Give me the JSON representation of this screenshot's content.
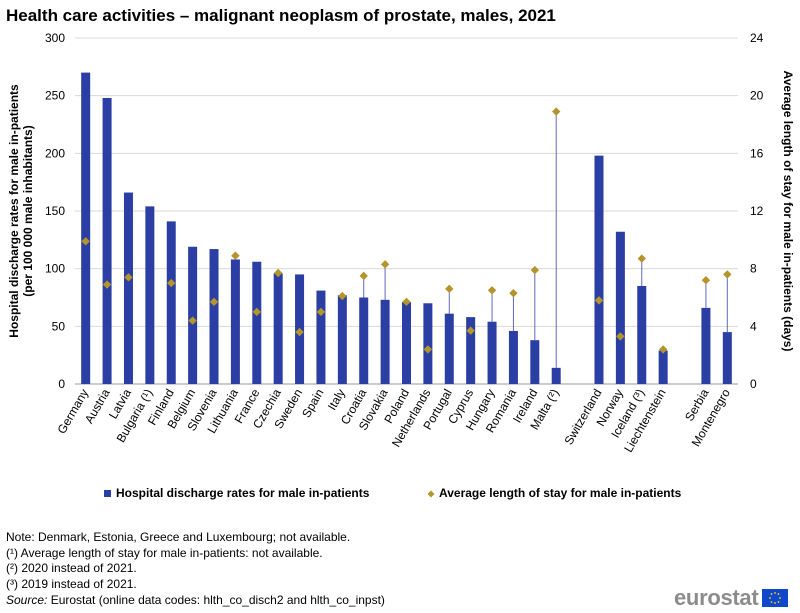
{
  "title": "Health care activities – malignant neoplasm of prostate, males, 2021",
  "chart_data": {
    "type": "bar",
    "categories": [
      "Germany",
      "Austria",
      "Latvia",
      "Bulgaria (¹)",
      "Finland",
      "Belgium",
      "Slovenia",
      "Lithuania",
      "France",
      "Czechia",
      "Sweden",
      "Spain",
      "Italy",
      "Croatia",
      "Slovakia",
      "Poland",
      "Netherlands",
      "Portugal",
      "Cyprus",
      "Hungary",
      "Romania",
      "Ireland",
      "Malta (²)",
      "",
      "Switzerland",
      "Norway",
      "Iceland (³)",
      "Liechtenstein",
      "",
      "Serbia",
      "Montenegro"
    ],
    "series": [
      {
        "name": "Hospital discharge rates for male in-patients",
        "axis": "left",
        "color": "#2a3ea3",
        "values": [
          270,
          248,
          166,
          154,
          141,
          119,
          117,
          108,
          106,
          96,
          95,
          81,
          77,
          75,
          73,
          71,
          70,
          61,
          58,
          54,
          46,
          38,
          14,
          null,
          198,
          132,
          85,
          29,
          null,
          66,
          45
        ]
      },
      {
        "name": "Average length of stay for male in-patients",
        "axis": "right",
        "color": "#b4952c",
        "values": [
          9.9,
          6.9,
          7.4,
          null,
          7.0,
          4.4,
          5.7,
          8.9,
          5.0,
          7.7,
          3.6,
          5.0,
          6.1,
          7.5,
          8.3,
          5.7,
          2.4,
          6.6,
          3.7,
          6.5,
          6.3,
          7.9,
          18.9,
          null,
          5.8,
          3.3,
          8.7,
          2.4,
          null,
          7.2,
          7.6
        ]
      }
    ],
    "ylim_left": [
      0,
      300
    ],
    "ylim_right": [
      0,
      24
    ],
    "yticks_left": [
      "0",
      "50",
      "100",
      "150",
      "200",
      "250",
      "300"
    ],
    "yticks_right": [
      "0",
      "4",
      "8",
      "12",
      "16",
      "20",
      "24"
    ],
    "ylabel_left": [
      "Hospital discharge rates for male in-patients",
      "(per 100 000 male inhabitants)"
    ],
    "ylabel_right": "Average length of stay for male in-patients (days)",
    "legend": [
      "Hospital discharge rates for male in-patients",
      "Average length of stay for male in-patients"
    ],
    "grid": true
  },
  "notes": [
    "Note: Denmark, Estonia, Greece and Luxembourg; not available.",
    "(¹) Average length  of stay for male in-patients: not available.",
    "(²) 2020 instead of 2021.",
    "(³) 2019 instead of 2021."
  ],
  "source_label": "Source:",
  "source_text": " Eurostat (online data codes: hlth_co_disch2 and hlth_co_inpst)",
  "logo_text": "eurostat"
}
